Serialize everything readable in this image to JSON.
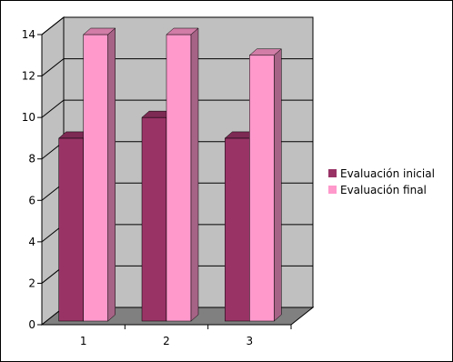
{
  "chart_data": {
    "type": "bar",
    "title": "",
    "xlabel": "",
    "ylabel": "",
    "categories": [
      "1",
      "2",
      "3"
    ],
    "series": [
      {
        "name": "Evaluación inicial",
        "values": [
          9,
          10,
          9
        ],
        "color": "#993366"
      },
      {
        "name": "Evaluación final",
        "values": [
          14,
          14,
          13
        ],
        "color": "#FF99CC"
      }
    ],
    "ylim": [
      0,
      14
    ],
    "yticks": [
      0,
      2,
      4,
      6,
      8,
      10,
      12,
      14
    ],
    "yticks_labels": [
      "0",
      "2",
      "4",
      "6",
      "8",
      "10",
      "12",
      "14"
    ],
    "grid": true,
    "legend": "right",
    "wall_color": "#C0C0C0",
    "floor_color": "#808080"
  }
}
